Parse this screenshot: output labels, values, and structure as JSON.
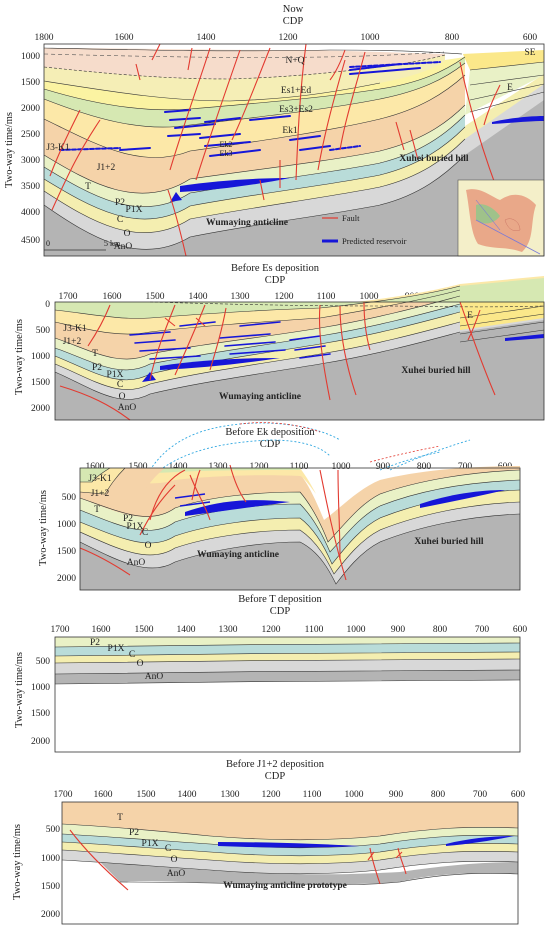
{
  "colors": {
    "nq": "#ffffff",
    "ed": "#f6dccb",
    "es": "#f5eeb6",
    "ek": "#fbf3a2",
    "e": "#fbe88a",
    "jk": "#d6e8b2",
    "j12": "#fce8a8",
    "t": "#f5d3a9",
    "p2": "#e9f1c6",
    "p1x": "#b9dcd9",
    "c": "#f4eeb0",
    "o": "#d8d8d8",
    "ano": "#b4b4b4",
    "fault": "#e23a30",
    "reservoir": "#1616d8",
    "erosion": "#2fa7e0"
  },
  "panels": [
    {
      "title": "Now",
      "cdp_label": "CDP",
      "x_ticks": [
        "1800",
        "1600",
        "1400",
        "1200",
        "1000",
        "800",
        "600"
      ],
      "y_ticks": [
        "1000",
        "1500",
        "2000",
        "2500",
        "3000",
        "3500",
        "4000",
        "4500"
      ],
      "y_label": "Two-way time/ms",
      "labels": {
        "nq": "N+Q",
        "se": "SE",
        "ed": "Es1+Ed",
        "es": "Es3+Es2",
        "ek1": "Ek1",
        "ek2": "Ek2",
        "ek3": "Ek3",
        "e": "E",
        "jk": "J3-K1",
        "j12": "J1+2",
        "t": "T",
        "p2": "P2",
        "p1x": "P1X",
        "c": "C",
        "o": "O",
        "ano": "AnO",
        "hill": "Xuhei buried hill",
        "anticline": "Wumaying anticline"
      },
      "scale_label_zero": "0",
      "scale_label": "5 km",
      "legend": {
        "fault": "Fault",
        "reservoir": "Predicted reservoir"
      },
      "inset": "location-map"
    },
    {
      "title": "Before Es deposition",
      "cdp_label": "CDP",
      "x_ticks": [
        "1700",
        "1600",
        "1500",
        "1400",
        "1300",
        "1200",
        "1100",
        "1000",
        "900",
        "800",
        "700",
        "600"
      ],
      "y_ticks": [
        "0",
        "500",
        "1000",
        "1500",
        "2000"
      ],
      "y_label": "Two-way time/ms",
      "labels": {
        "e": "E",
        "jk": "J3-K1",
        "j12": "J1+2",
        "t": "T",
        "p2": "P2",
        "p1x": "P1X",
        "c": "C",
        "o": "O",
        "ano": "AnO",
        "hill": "Xuhei buried hill",
        "anticline": "Wumaying anticline"
      }
    },
    {
      "title": "Before Ek deposition",
      "cdp_label": "CDP",
      "x_ticks": [
        "1600",
        "1500",
        "1400",
        "1300",
        "1200",
        "1100",
        "1000",
        "900",
        "800",
        "700",
        "600"
      ],
      "y_ticks": [
        "500",
        "1000",
        "1500",
        "2000"
      ],
      "y_label": "Two-way time/ms",
      "labels": {
        "jk": "J3-K1",
        "j12": "J1+2",
        "t": "T",
        "p2": "P2",
        "p1x": "P1X",
        "c": "C",
        "o": "O",
        "ano": "AnO",
        "hill": "Xuhei buried hill",
        "anticline": "Wumaying anticline"
      }
    },
    {
      "title": "Before T deposition",
      "cdp_label": "CDP",
      "x_ticks": [
        "1700",
        "1600",
        "1500",
        "1400",
        "1300",
        "1200",
        "1100",
        "1000",
        "900",
        "800",
        "700",
        "600"
      ],
      "y_ticks": [
        "500",
        "1000",
        "1500",
        "2000"
      ],
      "y_label": "Two-way time/ms",
      "labels": {
        "p2": "P2",
        "p1x": "P1X",
        "c": "C",
        "o": "O",
        "ano": "AnO"
      }
    },
    {
      "title": "Before J1+2 deposition",
      "cdp_label": "CDP",
      "x_ticks": [
        "1700",
        "1600",
        "1500",
        "1400",
        "1300",
        "1200",
        "1100",
        "1000",
        "900",
        "800",
        "700",
        "600"
      ],
      "y_ticks": [
        "500",
        "1000",
        "1500",
        "2000"
      ],
      "y_label": "Two-way time/ms",
      "labels": {
        "t": "T",
        "p2": "P2",
        "p1x": "P1X",
        "c": "C",
        "o": "O",
        "ano": "AnO",
        "prototype": "Wumaying anticline prototype"
      }
    }
  ]
}
